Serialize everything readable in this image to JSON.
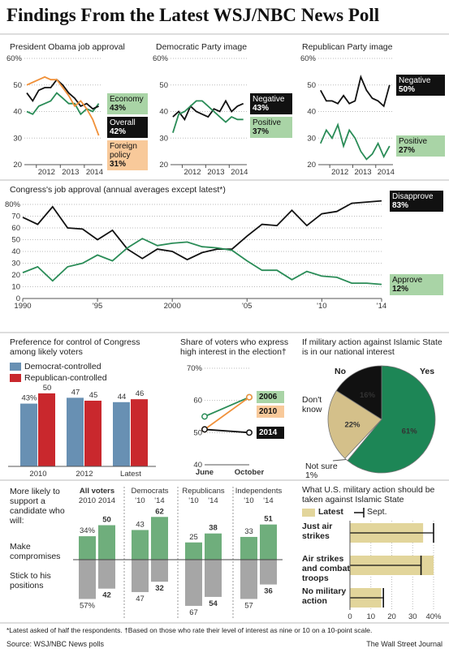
{
  "title": "Findings From the Latest WSJ/NBC News Poll",
  "chart_data": [
    {
      "type": "line",
      "title": "President Obama job approval",
      "grid": true,
      "x": [
        2011.6,
        2011.85,
        2012.1,
        2012.35,
        2012.6,
        2012.85,
        2013.1,
        2013.35,
        2013.6,
        2013.85,
        2014.1,
        2014.35,
        2014.6
      ],
      "xlim": [
        2011.5,
        2014.75
      ],
      "xticks": [
        2012,
        2013,
        2014
      ],
      "ylim": [
        20,
        60
      ],
      "yticks": [
        20,
        30,
        40,
        50,
        {
          "value": 60,
          "label": "60%"
        }
      ],
      "series": [
        {
          "name": "Economy",
          "color": "#2a8c57",
          "label_fill": "#a9d4a6",
          "end_label": "43%",
          "values": [
            40,
            39,
            42,
            43,
            44,
            47,
            45,
            43,
            43,
            39,
            41,
            40,
            43
          ]
        },
        {
          "name": "Overall",
          "color": "#111111",
          "label_fill": "#111111",
          "end_label": "42%",
          "values": [
            47,
            44,
            48,
            49,
            49,
            52,
            50,
            47,
            45,
            42,
            43,
            41,
            42
          ]
        },
        {
          "name": "Foreign policy",
          "color": "#f0913a",
          "label_fill": "#f8c99a",
          "end_label": "31%",
          "values": [
            50,
            51,
            52,
            53,
            52,
            52,
            49,
            46,
            42,
            44,
            41,
            37,
            31
          ]
        }
      ]
    },
    {
      "type": "line",
      "title": "Democratic Party image",
      "grid": true,
      "x": [
        2011.6,
        2011.85,
        2012.1,
        2012.35,
        2012.6,
        2012.85,
        2013.1,
        2013.35,
        2013.6,
        2013.85,
        2014.1,
        2014.35,
        2014.6
      ],
      "xlim": [
        2011.5,
        2014.75
      ],
      "xticks": [
        2012,
        2013,
        2014
      ],
      "ylim": [
        20,
        60
      ],
      "yticks": [
        20,
        30,
        40,
        50,
        {
          "value": 60,
          "label": "60%"
        }
      ],
      "series": [
        {
          "name": "Negative",
          "color": "#111111",
          "label_fill": "#111111",
          "end_label": "43%",
          "values": [
            38,
            40,
            37,
            42,
            40,
            39,
            38,
            41,
            40,
            44,
            40,
            42,
            43
          ]
        },
        {
          "name": "Positive",
          "color": "#2a8c57",
          "label_fill": "#a9d4a6",
          "end_label": "37%",
          "values": [
            32,
            39,
            40,
            42,
            44,
            44,
            42,
            40,
            38,
            36,
            38,
            37,
            37
          ]
        }
      ]
    },
    {
      "type": "line",
      "title": "Republican Party image",
      "grid": true,
      "x": [
        2011.6,
        2011.85,
        2012.1,
        2012.35,
        2012.6,
        2012.85,
        2013.1,
        2013.35,
        2013.6,
        2013.85,
        2014.1,
        2014.35,
        2014.6
      ],
      "xlim": [
        2011.5,
        2014.75
      ],
      "xticks": [
        2012,
        2013,
        2014
      ],
      "ylim": [
        20,
        60
      ],
      "yticks": [
        20,
        30,
        40,
        50,
        {
          "value": 60,
          "label": "60%"
        }
      ],
      "series": [
        {
          "name": "Negative",
          "color": "#111111",
          "label_fill": "#111111",
          "end_label": "50%",
          "values": [
            48,
            44,
            44,
            43,
            46,
            43,
            44,
            53,
            48,
            45,
            44,
            42,
            50
          ]
        },
        {
          "name": "Positive",
          "color": "#2a8c57",
          "label_fill": "#a9d4a6",
          "end_label": "27%",
          "values": [
            28,
            33,
            30,
            35,
            27,
            33,
            30,
            25,
            22,
            24,
            28,
            23,
            27
          ]
        }
      ]
    },
    {
      "type": "line",
      "title": "Congress's job approval (annual averages except latest*)",
      "grid": true,
      "x": [
        1990,
        1991,
        1992,
        1993,
        1994,
        1995,
        1996,
        1997,
        1998,
        1999,
        2000,
        2001,
        2002,
        2003,
        2004,
        2005,
        2006,
        2007,
        2008,
        2009,
        2010,
        2011,
        2012,
        2013,
        2014
      ],
      "xlim": [
        1990,
        2014
      ],
      "xticks": [
        1990,
        {
          "value": 1995,
          "label": "'95"
        },
        2000,
        {
          "value": 2005,
          "label": "'05"
        },
        {
          "value": 2010,
          "label": "'10"
        },
        {
          "value": 2014,
          "label": "'14"
        }
      ],
      "ylim": [
        0,
        80
      ],
      "yticks": [
        0,
        10,
        20,
        30,
        40,
        50,
        60,
        70,
        {
          "value": 80,
          "label": "80%"
        }
      ],
      "series": [
        {
          "name": "Disapprove",
          "color": "#111111",
          "label_fill": "#111111",
          "end_label": "83%",
          "values": [
            69,
            63,
            78,
            60,
            59,
            50,
            58,
            42,
            34,
            42,
            40,
            33,
            39,
            42,
            42,
            53,
            63,
            62,
            75,
            62,
            72,
            74,
            81,
            82,
            83
          ]
        },
        {
          "name": "Approve",
          "color": "#2a8c57",
          "label_fill": "#a9d4a6",
          "end_label": "12%",
          "values": [
            22,
            27,
            15,
            27,
            30,
            37,
            32,
            43,
            51,
            45,
            47,
            48,
            44,
            43,
            41,
            32,
            24,
            24,
            16,
            23,
            19,
            18,
            13,
            13,
            12
          ]
        }
      ]
    },
    {
      "type": "bar",
      "title": "Preference for control of Congress among likely voters",
      "categories": [
        "2010",
        "2012",
        "Latest"
      ],
      "series": [
        {
          "name": "Democrat-controlled",
          "color": "#6890b3",
          "values": [
            43,
            47,
            44
          ],
          "value_labels": [
            "43%",
            "47",
            "44"
          ]
        },
        {
          "name": "Republican-controlled",
          "color": "#c9282d",
          "values": [
            50,
            45,
            46
          ],
          "value_labels": [
            "50",
            "45",
            "46"
          ]
        }
      ]
    },
    {
      "type": "line",
      "title": "Share of voters who express high interest in the election†",
      "grid": true,
      "markers": true,
      "categories": [
        "June",
        "October"
      ],
      "ylim": [
        40,
        70
      ],
      "yticks": [
        40,
        50,
        60,
        {
          "value": 70,
          "label": "70%"
        }
      ],
      "series": [
        {
          "name": "2006",
          "color": "#2a8c57",
          "label_fill": "#a9d4a6",
          "values": [
            55,
            61
          ]
        },
        {
          "name": "2010",
          "color": "#f0913a",
          "label_fill": "#f8c99a",
          "values": [
            51,
            61
          ]
        },
        {
          "name": "2014",
          "color": "#111111",
          "label_fill": "#111111",
          "values": [
            51,
            50
          ]
        }
      ]
    },
    {
      "type": "pie",
      "title": "If military action against Islamic State is in our national interest",
      "categories": [
        "Yes",
        "Not sure",
        "Don't know",
        "No"
      ],
      "values": [
        61,
        1,
        22,
        16
      ],
      "value_labels": [
        "61%",
        "1%",
        "22%",
        "16%"
      ],
      "colors": [
        "#1d8656",
        "#ffffff",
        "#d4c08a",
        "#111111"
      ]
    },
    {
      "type": "diverging_bar",
      "title": "More likely to support a candidate who will:",
      "groups": [
        "All voters",
        "Democrats",
        "Republicans",
        "Independents"
      ],
      "categories": [
        "2010",
        "2014",
        "'10",
        "'14",
        "'10",
        "'14",
        "'10",
        "'14"
      ],
      "series": [
        {
          "name": "Make compromises",
          "color": "#6fae7c",
          "values": [
            34,
            50,
            43,
            62,
            25,
            38,
            33,
            51
          ],
          "value_labels": [
            "34%",
            "50",
            "43",
            "62",
            "25",
            "38",
            "33",
            "51"
          ]
        },
        {
          "name": "Stick to his positions",
          "color": "#a6a6a6",
          "values": [
            57,
            42,
            47,
            32,
            67,
            54,
            57,
            36
          ],
          "value_labels": [
            "57%",
            "42",
            "47",
            "32",
            "67",
            "54",
            "57",
            "36"
          ]
        }
      ]
    },
    {
      "type": "hbar",
      "title": "What U.S. military action should be taken against Islamic State",
      "categories": [
        "Just air strikes",
        "Air strikes and combat troops",
        "No military action"
      ],
      "xlim": [
        0,
        40
      ],
      "xticks": [
        0,
        10,
        20,
        30,
        {
          "value": 40,
          "label": "40%"
        }
      ],
      "grid": true,
      "series": [
        {
          "name": "Latest",
          "color": "#e2d59b",
          "values": [
            35,
            40,
            15
          ]
        },
        {
          "name": "Sept.",
          "color": "#111111",
          "values": [
            40,
            34,
            16
          ]
        }
      ]
    }
  ],
  "footnote": "*Latest asked of half the respondents. †Based on those who rate their level of interest as nine or 10 on a 10-point scale.",
  "source": "Source: WSJ/NBC News polls",
  "credit": "The Wall Street Journal"
}
